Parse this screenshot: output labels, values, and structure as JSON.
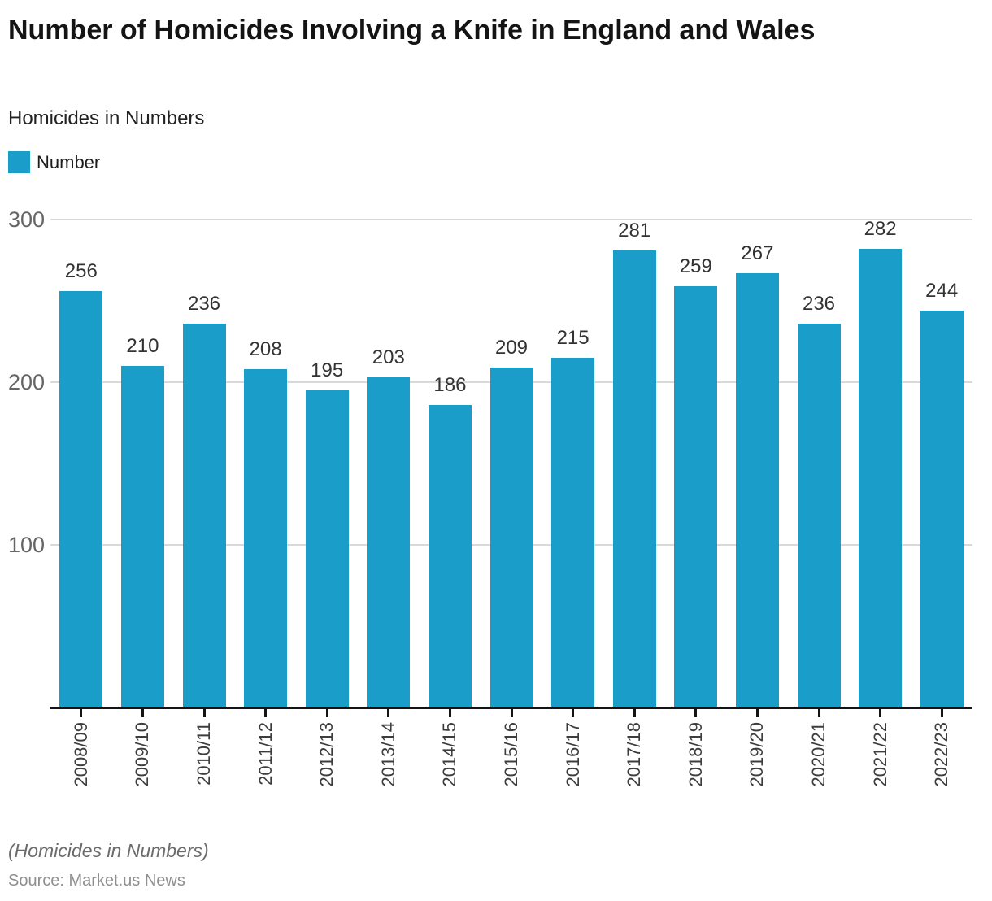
{
  "chart": {
    "title": "Number of Homicides Involving a Knife in England and Wales",
    "subtitle": "Homicides in Numbers",
    "legend": {
      "label": "Number",
      "swatch_color": "#1B9DCA"
    },
    "footer_note": "(Homicides in Numbers)",
    "source": "Source: Market.us News"
  },
  "chart_data": {
    "type": "bar",
    "title": "Number of Homicides Involving a Knife in England and Wales",
    "subtitle": "Homicides in Numbers",
    "categories": [
      "2008/09",
      "2009/10",
      "2010/11",
      "2011/12",
      "2012/13",
      "2013/14",
      "2014/15",
      "2015/16",
      "2016/17",
      "2017/18",
      "2018/19",
      "2019/20",
      "2020/21",
      "2021/22",
      "2022/23"
    ],
    "series": [
      {
        "name": "Number",
        "values": [
          256,
          210,
          236,
          208,
          195,
          203,
          186,
          209,
          215,
          281,
          259,
          267,
          236,
          282,
          244
        ]
      }
    ],
    "xlabel": "",
    "ylabel": "",
    "ylim": [
      0,
      300
    ],
    "yticks": [
      100,
      200,
      300
    ],
    "grid": true,
    "legend_position": "top-left",
    "bar_color": "#1B9DCA",
    "gridline_color": "#d9d9d9",
    "axis_color": "#141414"
  }
}
